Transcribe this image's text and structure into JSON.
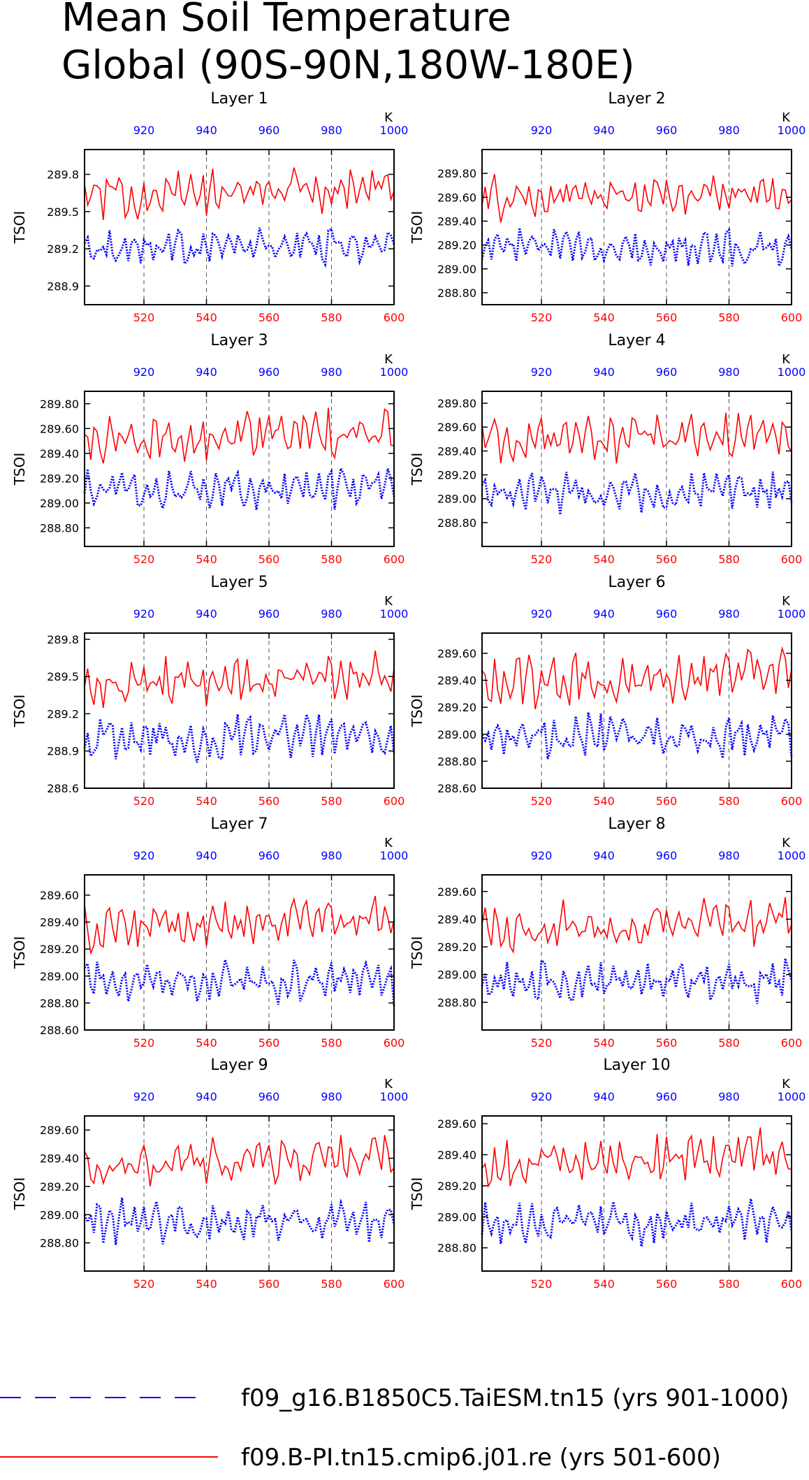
{
  "figure": {
    "title_line1": "Mean Soil Temperature",
    "title_line2": "Global (90S-90N,180W-180E)"
  },
  "legend": [
    {
      "label": "f09_g16.B1850C5.TaiESM.tn15 (yrs 901-1000)",
      "color": "#0000ff",
      "style": "dashed"
    },
    {
      "label": "f09.B-PI.tn15.cmip6.j01.re (yrs 501-600)",
      "color": "#ff0000",
      "style": "solid"
    }
  ],
  "chart_data": [
    {
      "type": "line",
      "title": "Layer 1",
      "ylabel": "TSOI",
      "ylim": [
        288.75,
        290.0
      ],
      "yticks": [
        288.9,
        289.2,
        289.5,
        289.8
      ],
      "ytick_labels": [
        "288.9",
        "289.2",
        "289.5",
        "289.8"
      ],
      "x_bottom": {
        "label": "",
        "range": [
          501,
          600
        ],
        "ticks": [
          520,
          540,
          560,
          580,
          600
        ],
        "color": "#ff0000"
      },
      "x_top": {
        "label": "K",
        "range": [
          901,
          1000
        ],
        "ticks": [
          920,
          940,
          960,
          980,
          1000
        ],
        "color": "#0000ff"
      },
      "gridlines_x": [
        520,
        540,
        560,
        580
      ],
      "series": [
        {
          "axis": "top",
          "color": "#0000ff",
          "base": 289.22,
          "amp": 0.12
        },
        {
          "axis": "bottom",
          "color": "#ff0000",
          "base": 289.62,
          "amp": 0.15
        }
      ]
    },
    {
      "type": "line",
      "title": "Layer 2",
      "ylabel": "TSOI",
      "ylim": [
        288.7,
        290.0
      ],
      "yticks": [
        288.8,
        289.0,
        289.2,
        289.4,
        289.6,
        289.8
      ],
      "ytick_labels": [
        "288.80",
        "289.00",
        "289.20",
        "289.40",
        "289.60",
        "289.80"
      ],
      "x_bottom": {
        "label": "",
        "range": [
          501,
          600
        ],
        "ticks": [
          520,
          540,
          560,
          580,
          600
        ],
        "color": "#ff0000"
      },
      "x_top": {
        "label": "K",
        "range": [
          901,
          1000
        ],
        "ticks": [
          920,
          940,
          960,
          980,
          1000
        ],
        "color": "#0000ff"
      },
      "gridlines_x": [
        520,
        540,
        560,
        580
      ],
      "series": [
        {
          "axis": "top",
          "color": "#0000ff",
          "base": 289.18,
          "amp": 0.13
        },
        {
          "axis": "bottom",
          "color": "#ff0000",
          "base": 289.58,
          "amp": 0.16
        }
      ]
    },
    {
      "type": "line",
      "title": "Layer 3",
      "ylabel": "TSOI",
      "ylim": [
        288.65,
        289.9
      ],
      "yticks": [
        288.8,
        289.0,
        289.2,
        289.4,
        289.6,
        289.8
      ],
      "ytick_labels": [
        "288.80",
        "289.00",
        "289.20",
        "289.40",
        "289.60",
        "289.80"
      ],
      "x_bottom": {
        "label": "",
        "range": [
          501,
          600
        ],
        "ticks": [
          520,
          540,
          560,
          580,
          600
        ],
        "color": "#ff0000"
      },
      "x_top": {
        "label": "K",
        "range": [
          901,
          1000
        ],
        "ticks": [
          920,
          940,
          960,
          980,
          1000
        ],
        "color": "#0000ff"
      },
      "gridlines_x": [
        520,
        540,
        560,
        580
      ],
      "series": [
        {
          "axis": "top",
          "color": "#0000ff",
          "base": 289.1,
          "amp": 0.14
        },
        {
          "axis": "bottom",
          "color": "#ff0000",
          "base": 289.5,
          "amp": 0.16
        }
      ]
    },
    {
      "type": "line",
      "title": "Layer 4",
      "ylabel": "TSOI",
      "ylim": [
        288.6,
        289.9
      ],
      "yticks": [
        288.8,
        289.0,
        289.2,
        289.4,
        289.6,
        289.8
      ],
      "ytick_labels": [
        "288.80",
        "289.00",
        "289.20",
        "289.40",
        "289.60",
        "289.80"
      ],
      "x_bottom": {
        "label": "",
        "range": [
          501,
          600
        ],
        "ticks": [
          520,
          540,
          560,
          580,
          600
        ],
        "color": "#ff0000"
      },
      "x_top": {
        "label": "K",
        "range": [
          901,
          1000
        ],
        "ticks": [
          920,
          940,
          960,
          980,
          1000
        ],
        "color": "#0000ff"
      },
      "gridlines_x": [
        520,
        540,
        560,
        580
      ],
      "series": [
        {
          "axis": "top",
          "color": "#0000ff",
          "base": 289.05,
          "amp": 0.14
        },
        {
          "axis": "bottom",
          "color": "#ff0000",
          "base": 289.47,
          "amp": 0.16
        }
      ]
    },
    {
      "type": "line",
      "title": "Layer 5",
      "ylabel": "TSOI",
      "ylim": [
        288.6,
        289.85
      ],
      "yticks": [
        288.6,
        288.9,
        289.2,
        289.5,
        289.8
      ],
      "ytick_labels": [
        "288.6",
        "288.9",
        "289.2",
        "289.5",
        "289.8"
      ],
      "x_bottom": {
        "label": "",
        "range": [
          501,
          600
        ],
        "ticks": [
          520,
          540,
          560,
          580,
          600
        ],
        "color": "#ff0000"
      },
      "x_top": {
        "label": "K",
        "range": [
          901,
          1000
        ],
        "ticks": [
          920,
          940,
          960,
          980,
          1000
        ],
        "color": "#0000ff"
      },
      "gridlines_x": [
        520,
        540,
        560,
        580
      ],
      "series": [
        {
          "axis": "top",
          "color": "#0000ff",
          "base": 289.0,
          "amp": 0.15
        },
        {
          "axis": "bottom",
          "color": "#ff0000",
          "base": 289.42,
          "amp": 0.17
        }
      ]
    },
    {
      "type": "line",
      "title": "Layer 6",
      "ylabel": "TSOI",
      "ylim": [
        288.6,
        289.75
      ],
      "yticks": [
        288.6,
        288.8,
        289.0,
        289.2,
        289.4,
        289.6
      ],
      "ytick_labels": [
        "288.60",
        "288.80",
        "289.00",
        "289.20",
        "289.40",
        "289.60"
      ],
      "x_bottom": {
        "label": "",
        "range": [
          501,
          600
        ],
        "ticks": [
          520,
          540,
          560,
          580,
          600
        ],
        "color": "#ff0000"
      },
      "x_top": {
        "label": "K",
        "range": [
          901,
          1000
        ],
        "ticks": [
          920,
          940,
          960,
          980,
          1000
        ],
        "color": "#0000ff"
      },
      "gridlines_x": [
        520,
        540,
        560,
        580
      ],
      "series": [
        {
          "axis": "top",
          "color": "#0000ff",
          "base": 288.98,
          "amp": 0.14
        },
        {
          "axis": "bottom",
          "color": "#ff0000",
          "base": 289.38,
          "amp": 0.16
        }
      ]
    },
    {
      "type": "line",
      "title": "Layer 7",
      "ylabel": "TSOI",
      "ylim": [
        288.6,
        289.75
      ],
      "yticks": [
        288.6,
        288.8,
        289.0,
        289.2,
        289.4,
        289.6
      ],
      "ytick_labels": [
        "288.60",
        "288.80",
        "289.00",
        "289.20",
        "289.40",
        "289.60"
      ],
      "x_bottom": {
        "label": "",
        "range": [
          501,
          600
        ],
        "ticks": [
          520,
          540,
          560,
          580,
          600
        ],
        "color": "#ff0000"
      },
      "x_top": {
        "label": "K",
        "range": [
          901,
          1000
        ],
        "ticks": [
          920,
          940,
          960,
          980,
          1000
        ],
        "color": "#0000ff"
      },
      "gridlines_x": [
        520,
        540,
        560,
        580
      ],
      "series": [
        {
          "axis": "top",
          "color": "#0000ff",
          "base": 288.96,
          "amp": 0.14
        },
        {
          "axis": "bottom",
          "color": "#ff0000",
          "base": 289.35,
          "amp": 0.15
        }
      ]
    },
    {
      "type": "line",
      "title": "Layer 8",
      "ylabel": "TSOI",
      "ylim": [
        288.6,
        289.72
      ],
      "yticks": [
        288.8,
        289.0,
        289.2,
        289.4,
        289.6
      ],
      "ytick_labels": [
        "288.80",
        "289.00",
        "289.20",
        "289.40",
        "289.60"
      ],
      "x_bottom": {
        "label": "",
        "range": [
          501,
          600
        ],
        "ticks": [
          520,
          540,
          560,
          580,
          600
        ],
        "color": "#ff0000"
      },
      "x_top": {
        "label": "K",
        "range": [
          901,
          1000
        ],
        "ticks": [
          920,
          940,
          960,
          980,
          1000
        ],
        "color": "#0000ff"
      },
      "gridlines_x": [
        520,
        540,
        560,
        580
      ],
      "series": [
        {
          "axis": "top",
          "color": "#0000ff",
          "base": 288.95,
          "amp": 0.13
        },
        {
          "axis": "bottom",
          "color": "#ff0000",
          "base": 289.33,
          "amp": 0.15
        }
      ]
    },
    {
      "type": "line",
      "title": "Layer 9",
      "ylabel": "TSOI",
      "ylim": [
        288.6,
        289.7
      ],
      "yticks": [
        288.8,
        289.0,
        289.2,
        289.4,
        289.6
      ],
      "ytick_labels": [
        "288.80",
        "289.00",
        "289.20",
        "289.40",
        "289.60"
      ],
      "x_bottom": {
        "label": "",
        "range": [
          501,
          600
        ],
        "ticks": [
          520,
          540,
          560,
          580,
          600
        ],
        "color": "#ff0000"
      },
      "x_top": {
        "label": "K",
        "range": [
          901,
          1000
        ],
        "ticks": [
          920,
          940,
          960,
          980,
          1000
        ],
        "color": "#0000ff"
      },
      "gridlines_x": [
        520,
        540,
        560,
        580
      ],
      "series": [
        {
          "axis": "top",
          "color": "#0000ff",
          "base": 288.95,
          "amp": 0.13
        },
        {
          "axis": "bottom",
          "color": "#ff0000",
          "base": 289.33,
          "amp": 0.14
        }
      ]
    },
    {
      "type": "line",
      "title": "Layer 10",
      "ylabel": "TSOI",
      "ylim": [
        288.65,
        289.65
      ],
      "yticks": [
        288.8,
        289.0,
        289.2,
        289.4,
        289.6
      ],
      "ytick_labels": [
        "288.80",
        "289.00",
        "289.20",
        "289.40",
        "289.60"
      ],
      "x_bottom": {
        "label": "",
        "range": [
          501,
          600
        ],
        "ticks": [
          520,
          540,
          560,
          580,
          600
        ],
        "color": "#ff0000"
      },
      "x_top": {
        "label": "K",
        "range": [
          901,
          1000
        ],
        "ticks": [
          920,
          940,
          960,
          980,
          1000
        ],
        "color": "#0000ff"
      },
      "gridlines_x": [
        520,
        540,
        560,
        580
      ],
      "series": [
        {
          "axis": "top",
          "color": "#0000ff",
          "base": 288.96,
          "amp": 0.12
        },
        {
          "axis": "bottom",
          "color": "#ff0000",
          "base": 289.33,
          "amp": 0.13
        }
      ]
    }
  ]
}
